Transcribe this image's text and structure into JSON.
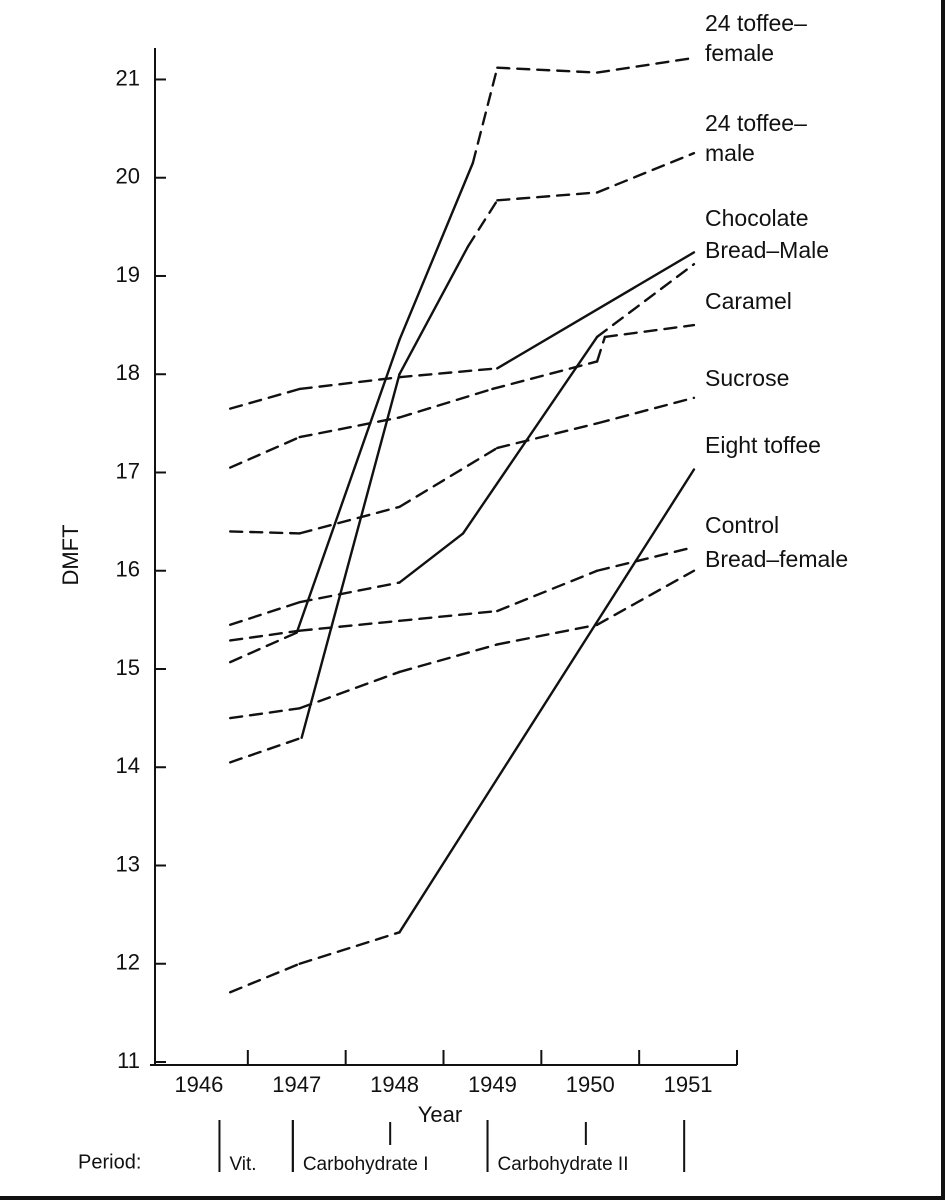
{
  "chart_data": {
    "type": "line",
    "xlabel": "Year",
    "ylabel": "DMFT",
    "xlim": [
      1945.5,
      1951.5
    ],
    "xticks": [
      1946,
      1947,
      1948,
      1949,
      1950,
      1951
    ],
    "x_tick_marks": [
      1946.5,
      1947.5,
      1948.5,
      1949.5,
      1950.5,
      1951.5
    ],
    "ylim": [
      11,
      21.3
    ],
    "yticks": [
      11,
      12,
      13,
      14,
      15,
      16,
      17,
      18,
      19,
      20,
      21
    ],
    "color": "#111111",
    "period_label": "Period:",
    "periods": [
      {
        "label": "Vit.",
        "start": 1946.21,
        "end": 1946.96
      },
      {
        "label": "Carbohydrate I",
        "start": 1946.96,
        "end": 1948.95
      },
      {
        "label": "Carbohydrate II",
        "start": 1948.95,
        "end": 1950.96
      }
    ],
    "series": [
      {
        "name": "24 toffee–female",
        "x": [
          1946.32,
          1947.0,
          1948.05,
          1948.8,
          1949.05,
          1950.07,
          1951.06
        ],
        "values": [
          15.07,
          15.37,
          18.35,
          20.15,
          21.12,
          21.07,
          21.22
        ],
        "styles": [
          "dashed",
          "solid",
          "solid",
          "dashed",
          "dashed",
          "dashed"
        ]
      },
      {
        "name": "24 toffee–male",
        "x": [
          1946.32,
          1947.05,
          1948.05,
          1948.75,
          1949.05,
          1950.07,
          1951.06
        ],
        "values": [
          14.05,
          14.3,
          18.0,
          19.3,
          19.77,
          19.85,
          20.25
        ],
        "styles": [
          "dashed",
          "solid",
          "solid",
          "dashed",
          "dashed",
          "dashed"
        ]
      },
      {
        "name": "Chocolate",
        "x": [
          1946.32,
          1947.03,
          1948.05,
          1949.05,
          1951.06
        ],
        "values": [
          17.65,
          17.85,
          17.97,
          18.06,
          19.24
        ],
        "styles": [
          "dashed",
          "dashed",
          "dashed",
          "solid"
        ]
      },
      {
        "name": "Bread–Male",
        "x": [
          1946.32,
          1947.03,
          1948.05,
          1948.7,
          1950.07,
          1951.06
        ],
        "values": [
          15.45,
          15.68,
          15.88,
          16.38,
          18.38,
          19.12
        ],
        "styles": [
          "dashed",
          "dashed",
          "solid",
          "solid",
          "dashed"
        ]
      },
      {
        "name": "Caramel",
        "x": [
          1946.32,
          1947.03,
          1948.05,
          1949.0,
          1950.07,
          1950.15,
          1951.06
        ],
        "values": [
          17.05,
          17.36,
          17.56,
          17.85,
          18.13,
          18.38,
          18.5
        ],
        "styles": [
          "dashed",
          "dashed",
          "dashed",
          "dashed",
          "dashed",
          "dashed"
        ]
      },
      {
        "name": "Sucrose",
        "x": [
          1946.32,
          1947.03,
          1948.05,
          1949.05,
          1950.07,
          1951.06
        ],
        "values": [
          16.4,
          16.38,
          16.65,
          17.25,
          17.5,
          17.76
        ],
        "styles": [
          "dashed",
          "dashed",
          "dashed",
          "dashed",
          "dashed"
        ]
      },
      {
        "name": "Eight toffee",
        "x": [
          1946.32,
          1947.03,
          1948.05,
          1951.06
        ],
        "values": [
          11.71,
          12.0,
          12.32,
          17.03
        ],
        "styles": [
          "dashed",
          "dashed",
          "solid"
        ]
      },
      {
        "name": "Control",
        "x": [
          1946.32,
          1947.03,
          1948.05,
          1949.05,
          1950.07,
          1951.06
        ],
        "values": [
          15.29,
          15.39,
          15.49,
          15.59,
          16.0,
          16.24
        ],
        "styles": [
          "dashed",
          "dashed",
          "dashed",
          "dashed",
          "dashed"
        ]
      },
      {
        "name": "Bread–female",
        "x": [
          1946.32,
          1947.03,
          1948.05,
          1949.05,
          1950.07,
          1951.06
        ],
        "values": [
          14.5,
          14.6,
          14.97,
          15.25,
          15.45,
          16.0
        ],
        "styles": [
          "dashed",
          "dashed",
          "dashed",
          "dashed",
          "dashed"
        ]
      }
    ]
  }
}
